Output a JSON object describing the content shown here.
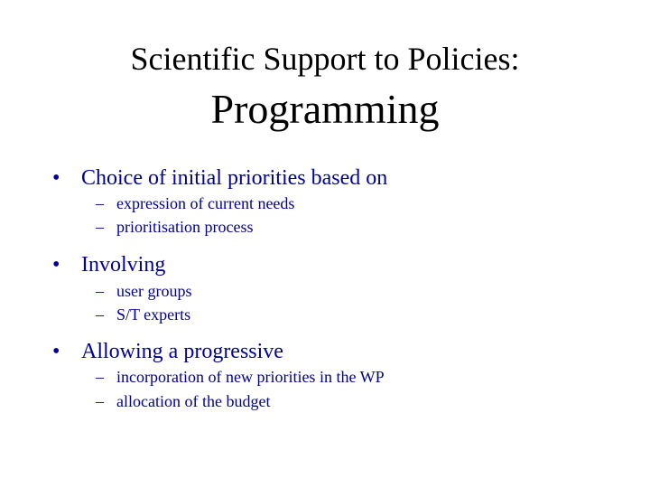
{
  "slide": {
    "title_line1": "Scientific Support to Policies:",
    "title_line2": "Programming",
    "bullet_marker": "•",
    "sub_marker": "–",
    "text_color": "#000099",
    "title_color": "#000000",
    "bullets": [
      {
        "text": "Choice of initial priorities based on",
        "subs": [
          "expression of current needs",
          "prioritisation process"
        ]
      },
      {
        "text": "Involving",
        "subs": [
          "user groups",
          "S/T experts"
        ]
      },
      {
        "text": "Allowing a progressive",
        "subs": [
          "incorporation of new priorities in the WP",
          "allocation of the budget"
        ]
      }
    ]
  }
}
